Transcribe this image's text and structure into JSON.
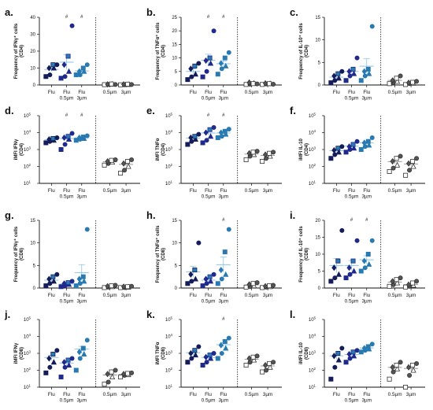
{
  "colors": {
    "flu": "#141c5a",
    "flu05": "#202a8c",
    "flu3": "#2a7ab2",
    "ctrl_dark": "#555555",
    "ctrl_light": "#ffffff",
    "err": "#8bc3e8"
  },
  "chart_data": [
    {
      "type": "scatter",
      "panel": "a.",
      "ylabel": "Frequency of IFNγ⁺ cells",
      "ysub": "(CD4)",
      "scale": "linear",
      "ylim": [
        0,
        40
      ],
      "yticks": [
        0,
        10,
        20,
        30,
        40
      ],
      "categories": [
        "Flu",
        "Flu\n0.5µm",
        "Flu\n3µm",
        "0.5µm",
        "3µm"
      ],
      "sig": [
        "",
        "#",
        "#",
        "",
        ""
      ],
      "values": [
        [
          5,
          6,
          10,
          10,
          12,
          12
        ],
        [
          4,
          5,
          8,
          12,
          17,
          35
        ],
        [
          6,
          6,
          8,
          8,
          10,
          12
        ],
        [
          0.2,
          0.3,
          0.5,
          0.4,
          0.6,
          0.3
        ],
        [
          0.1,
          0.2,
          0.3,
          0.4,
          0.5,
          0.3
        ]
      ]
    },
    {
      "type": "scatter",
      "panel": "b.",
      "ylabel": "Frequency of TNFα⁺ cells",
      "ysub": "(CD4)",
      "scale": "linear",
      "ylim": [
        0,
        25
      ],
      "yticks": [
        0,
        5,
        10,
        15,
        20,
        25
      ],
      "categories": [
        "Flu",
        "Flu\n0.5µm",
        "Flu\n3µm",
        "0.5µm",
        "3µm"
      ],
      "sig": [
        "",
        "#",
        "#",
        "",
        ""
      ],
      "values": [
        [
          2,
          3,
          4,
          6,
          7,
          8
        ],
        [
          3,
          5,
          8,
          9,
          10,
          20
        ],
        [
          4,
          6,
          7,
          8,
          10,
          12
        ],
        [
          0.2,
          0.3,
          0.6,
          0.9,
          0.5,
          0.4
        ],
        [
          0.2,
          0.4,
          0.5,
          0.6,
          0.5,
          0.3
        ]
      ]
    },
    {
      "type": "scatter",
      "panel": "c.",
      "ylabel": "Frequency of IL-10⁺ cells",
      "ysub": "(CD4)",
      "scale": "linear",
      "ylim": [
        0,
        15
      ],
      "yticks": [
        0,
        5,
        10,
        15
      ],
      "categories": [
        "Flu",
        "Flu\n0.5µm",
        "Flu\n3µm",
        "0.5µm",
        "3µm"
      ],
      "sig": [
        "",
        "",
        "",
        "",
        ""
      ],
      "values": [
        [
          0.5,
          1,
          1.5,
          2,
          2.5,
          3
        ],
        [
          1,
          2,
          2.5,
          3,
          3.5,
          6
        ],
        [
          1,
          2,
          2.5,
          3,
          3.5,
          13
        ],
        [
          0.3,
          0.5,
          0.8,
          1,
          1.5,
          2
        ],
        [
          0.1,
          0.3,
          0.4,
          0.5,
          0.6,
          0.8
        ]
      ]
    },
    {
      "type": "scatter",
      "panel": "d.",
      "ylabel": "iMFI IFNγ",
      "ysub": "(CD4)",
      "scale": "log",
      "ylim": [
        10,
        100000
      ],
      "yticks": [
        10,
        100,
        1000,
        10000,
        100000
      ],
      "categories": [
        "Flu",
        "Flu\n0.5µm",
        "Flu\n3µm",
        "0.5µm",
        "3µm"
      ],
      "sig": [
        "",
        "#",
        "#",
        "",
        ""
      ],
      "values": [
        [
          2500,
          3000,
          3500,
          4000,
          4500,
          5000
        ],
        [
          1000,
          2000,
          4000,
          5000,
          6000,
          9000
        ],
        [
          3500,
          4000,
          4500,
          5000,
          5500,
          6500
        ],
        [
          120,
          150,
          180,
          200,
          230,
          250
        ],
        [
          40,
          60,
          100,
          150,
          200,
          250
        ]
      ]
    },
    {
      "type": "scatter",
      "panel": "e.",
      "ylabel": "iMFI TNFα",
      "ysub": "(CD4)",
      "scale": "log",
      "ylim": [
        10,
        100000
      ],
      "yticks": [
        10,
        100,
        1000,
        10000,
        100000
      ],
      "categories": [
        "Flu",
        "Flu\n0.5µm",
        "Flu\n3µm",
        "0.5µm",
        "3µm"
      ],
      "sig": [
        "",
        "#",
        "#",
        "",
        ""
      ],
      "values": [
        [
          2000,
          3000,
          4000,
          5000,
          6000,
          8000
        ],
        [
          2500,
          3500,
          6000,
          10000,
          15000,
          20000
        ],
        [
          5000,
          6000,
          8000,
          10000,
          12000,
          16000
        ],
        [
          250,
          400,
          500,
          600,
          700,
          800
        ],
        [
          200,
          300,
          400,
          500,
          600,
          700
        ]
      ]
    },
    {
      "type": "scatter",
      "panel": "f.",
      "ylabel": "iMFI IL-10",
      "ysub": "(CD4)",
      "scale": "log",
      "ylim": [
        10,
        100000
      ],
      "yticks": [
        10,
        100,
        1000,
        10000,
        100000
      ],
      "categories": [
        "Flu",
        "Flu\n0.5µm",
        "Flu\n3µm",
        "0.5µm",
        "3µm"
      ],
      "sig": [
        "",
        "",
        "",
        "",
        ""
      ],
      "values": [
        [
          300,
          500,
          700,
          900,
          1200,
          1500
        ],
        [
          700,
          1000,
          1200,
          1500,
          2000,
          3000
        ],
        [
          1000,
          1500,
          1800,
          2500,
          3000,
          5000
        ],
        [
          50,
          80,
          120,
          200,
          300,
          400
        ],
        [
          30,
          60,
          100,
          150,
          200,
          300
        ]
      ]
    },
    {
      "type": "scatter",
      "panel": "g.",
      "ylabel": "Frequency of IFNγ⁺ cells",
      "ysub": "(CD8)",
      "scale": "linear",
      "ylim": [
        0,
        15
      ],
      "yticks": [
        0,
        5,
        10,
        15
      ],
      "categories": [
        "Flu",
        "Flu\n0.5µm",
        "Flu\n3µm",
        "0.5µm",
        "3µm"
      ],
      "sig": [
        "",
        "",
        "",
        "",
        ""
      ],
      "values": [
        [
          0.5,
          1,
          1.5,
          2,
          2.5,
          3
        ],
        [
          0.3,
          0.5,
          0.8,
          1,
          1.2,
          1.5
        ],
        [
          0.5,
          1,
          1.5,
          2,
          2.5,
          13
        ],
        [
          0.1,
          0.2,
          0.3,
          0.4,
          0.5,
          0.6
        ],
        [
          0.1,
          0.1,
          0.2,
          0.3,
          0.3,
          0.4
        ]
      ]
    },
    {
      "type": "scatter",
      "panel": "h.",
      "ylabel": "Frequency of TNFα⁺ cells",
      "ysub": "(CD8)",
      "scale": "linear",
      "ylim": [
        0,
        15
      ],
      "yticks": [
        0,
        5,
        10,
        15
      ],
      "categories": [
        "Flu",
        "Flu\n0.5µm",
        "Flu\n3µm",
        "0.5µm",
        "3µm"
      ],
      "sig": [
        "",
        "",
        "#",
        "",
        ""
      ],
      "values": [
        [
          1,
          1.5,
          2,
          3,
          4,
          10
        ],
        [
          0.5,
          1,
          1.5,
          2,
          2.5,
          3
        ],
        [
          1,
          2,
          3,
          4,
          8,
          13
        ],
        [
          0.2,
          0.3,
          0.5,
          0.8,
          1,
          1.2
        ],
        [
          0.1,
          0.2,
          0.3,
          0.4,
          0.5,
          0.6
        ]
      ]
    },
    {
      "type": "scatter",
      "panel": "i.",
      "ylabel": "Frequency of IL-10⁺ cells",
      "ysub": "(CD8)",
      "scale": "linear",
      "ylim": [
        0,
        20
      ],
      "yticks": [
        0,
        5,
        10,
        15,
        20
      ],
      "categories": [
        "Flu",
        "Flu\n0.5µm",
        "Flu\n3µm",
        "0.5µm",
        "3µm"
      ],
      "sig": [
        "",
        "#",
        "#",
        "",
        ""
      ],
      "values": [
        [
          2,
          3,
          4,
          6,
          8,
          17
        ],
        [
          3,
          4,
          5,
          6,
          8,
          14
        ],
        [
          5,
          6,
          7,
          8,
          10,
          14
        ],
        [
          0.5,
          1,
          1.5,
          2,
          2.5,
          3
        ],
        [
          0.3,
          0.5,
          0.8,
          1,
          1.5,
          2
        ]
      ]
    },
    {
      "type": "scatter",
      "panel": "j.",
      "ylabel": "iMFI IFNγ",
      "ysub": "(CD8)",
      "scale": "log",
      "ylim": [
        10,
        100000
      ],
      "yticks": [
        10,
        100,
        1000,
        10000,
        100000
      ],
      "categories": [
        "Flu",
        "Flu\n0.5µm",
        "Flu\n3µm",
        "0.5µm",
        "3µm"
      ],
      "sig": [
        "",
        "",
        "",
        "",
        ""
      ],
      "values": [
        [
          70,
          150,
          300,
          500,
          900,
          1500
        ],
        [
          40,
          150,
          200,
          300,
          400,
          500
        ],
        [
          100,
          500,
          900,
          1200,
          2000,
          6000
        ],
        [
          15,
          20,
          40,
          60,
          80,
          100
        ],
        [
          40,
          50,
          55,
          60,
          65,
          70
        ]
      ]
    },
    {
      "type": "scatter",
      "panel": "k.",
      "ylabel": "iMFI TNFα",
      "ysub": "(CD8)",
      "scale": "log",
      "ylim": [
        10,
        100000
      ],
      "yticks": [
        10,
        100,
        1000,
        10000,
        100000
      ],
      "categories": [
        "Flu",
        "Flu\n0.5µm",
        "Flu\n3µm",
        "0.5µm",
        "3µm"
      ],
      "sig": [
        "",
        "",
        "#",
        "",
        ""
      ],
      "values": [
        [
          300,
          500,
          800,
          1000,
          1500,
          2500
        ],
        [
          200,
          300,
          500,
          600,
          800,
          1000
        ],
        [
          500,
          1000,
          2000,
          3000,
          5000,
          8000
        ],
        [
          200,
          300,
          400,
          500,
          600,
          700
        ],
        [
          80,
          100,
          150,
          200,
          250,
          300
        ]
      ]
    },
    {
      "type": "scatter",
      "panel": "l.",
      "ylabel": "iMFI IL-10",
      "ysub": "(CD8)",
      "scale": "log",
      "ylim": [
        10,
        100000
      ],
      "yticks": [
        10,
        100,
        1000,
        10000,
        100000
      ],
      "categories": [
        "Flu",
        "Flu\n0.5µm",
        "Flu\n3µm",
        "0.5µm",
        "3µm"
      ],
      "sig": [
        "",
        "",
        "",
        "",
        ""
      ],
      "values": [
        [
          30,
          150,
          400,
          700,
          1000,
          2000
        ],
        [
          300,
          500,
          700,
          900,
          1200,
          1500
        ],
        [
          1200,
          1500,
          1800,
          2000,
          2500,
          3500
        ],
        [
          30,
          80,
          120,
          150,
          200,
          300
        ],
        [
          10,
          50,
          100,
          150,
          200,
          250
        ]
      ]
    }
  ]
}
